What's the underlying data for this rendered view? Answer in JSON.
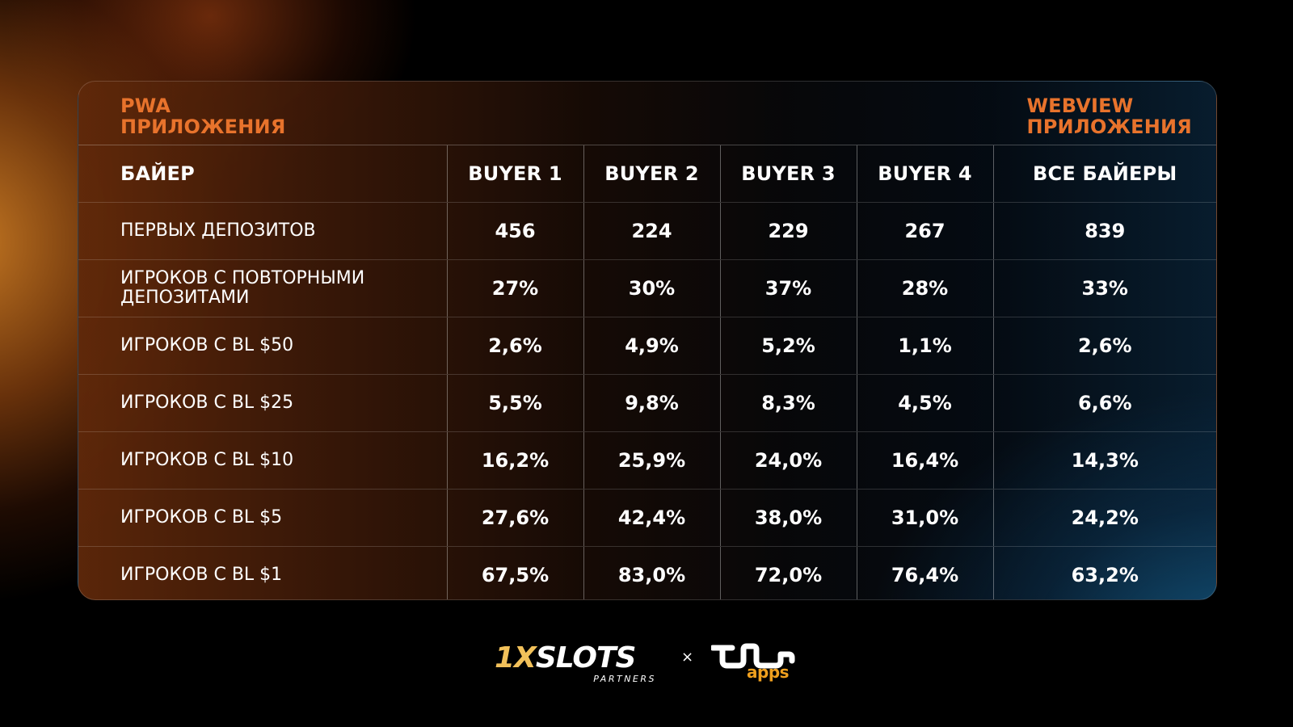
{
  "header": {
    "left_label_line1": "PWA",
    "left_label_line2": "ПРИЛОЖЕНИЯ",
    "right_label_line1": "WEBVIEW",
    "right_label_line2": "ПРИЛОЖЕНИЯ"
  },
  "table": {
    "columns": [
      "БАЙЕР",
      "BUYER 1",
      "BUYER 2",
      "BUYER 3",
      "BUYER 4",
      "ВСЕ БАЙЕРЫ"
    ],
    "rows": [
      {
        "label_line1": "ПЕРВЫХ ДЕПОЗИТОВ",
        "label_line2": "",
        "values": [
          "456",
          "224",
          "229",
          "267",
          "839"
        ]
      },
      {
        "label_line1": "ИГРОКОВ С ПОВТОРНЫМИ",
        "label_line2": "ДЕПОЗИТАМИ",
        "values": [
          "27%",
          "30%",
          "37%",
          "28%",
          "33%"
        ]
      },
      {
        "label_line1": "ИГРОКОВ С BL $50",
        "label_line2": "",
        "values": [
          "2,6%",
          "4,9%",
          "5,2%",
          "1,1%",
          "2,6%"
        ]
      },
      {
        "label_line1": "ИГРОКОВ С BL $25",
        "label_line2": "",
        "values": [
          "5,5%",
          "9,8%",
          "8,3%",
          "4,5%",
          "6,6%"
        ]
      },
      {
        "label_line1": "ИГРОКОВ С BL $10",
        "label_line2": "",
        "values": [
          "16,2%",
          "25,9%",
          "24,0%",
          "16,4%",
          "14,3%"
        ]
      },
      {
        "label_line1": "ИГРОКОВ С BL $5",
        "label_line2": "",
        "values": [
          "27,6%",
          "42,4%",
          "38,0%",
          "31,0%",
          "24,2%"
        ]
      },
      {
        "label_line1": "ИГРОКОВ С BL $1",
        "label_line2": "",
        "values": [
          "67,5%",
          "83,0%",
          "72,0%",
          "76,4%",
          "63,2%"
        ]
      }
    ]
  },
  "footer": {
    "logo1_prefix": "1X",
    "logo1_main": "SLOTS",
    "logo1_sub": "PARTNERS",
    "separator": "×",
    "logo2_text": "apps"
  },
  "colors": {
    "accent_orange": "#e8732c",
    "apps_orange": "#f0a01e",
    "logo_gold": "#f2c15a"
  }
}
